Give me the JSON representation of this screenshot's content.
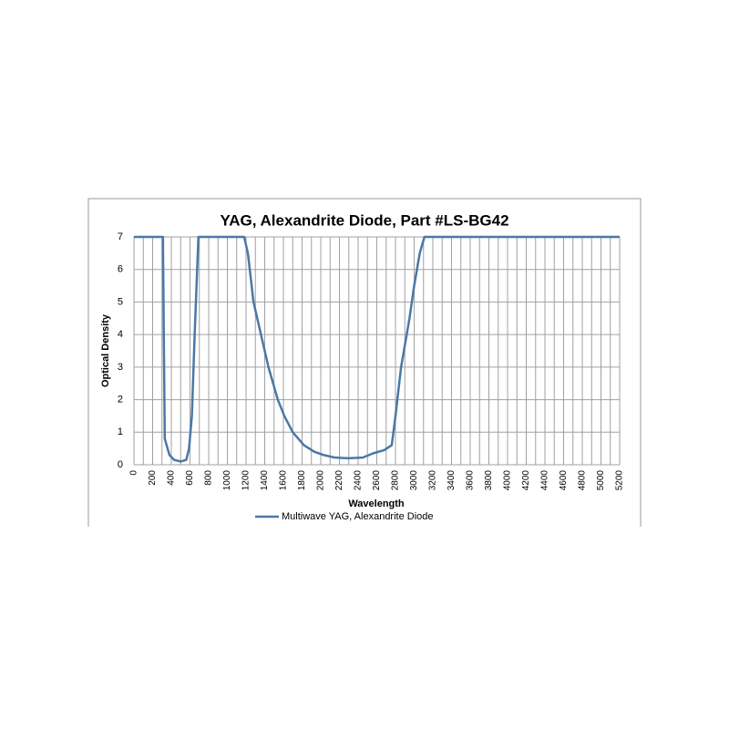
{
  "chart_data": {
    "type": "line",
    "title": "YAG, Alexandrite Diode, Part #LS-BG42",
    "xlabel": "Wavelength",
    "ylabel": "Optical Density",
    "x": [
      0,
      300,
      310,
      330,
      380,
      430,
      500,
      560,
      590,
      620,
      650,
      690,
      1180,
      1220,
      1280,
      1360,
      1440,
      1540,
      1610,
      1700,
      1820,
      1930,
      2030,
      2150,
      2300,
      2450,
      2560,
      2680,
      2760,
      2800,
      2860,
      2950,
      3000,
      3060,
      3110,
      5200
    ],
    "series": [
      {
        "name": "Multiwave YAG, Alexandrite Diode",
        "color": "#4a78a6",
        "values": [
          7,
          7,
          7,
          0.8,
          0.3,
          0.15,
          0.1,
          0.15,
          0.5,
          1.5,
          4,
          7,
          7,
          6.5,
          5,
          4,
          3,
          2,
          1.5,
          1,
          0.6,
          0.4,
          0.3,
          0.22,
          0.2,
          0.22,
          0.35,
          0.45,
          0.6,
          1.5,
          3,
          4.5,
          5.5,
          6.5,
          7,
          7
        ]
      }
    ],
    "xlim": [
      0,
      5200
    ],
    "xticks": [
      0,
      200,
      400,
      600,
      800,
      1000,
      1200,
      1400,
      1600,
      1800,
      2000,
      2200,
      2400,
      2600,
      2800,
      3000,
      3200,
      3400,
      3600,
      3800,
      4000,
      4200,
      4400,
      4600,
      4800,
      5000,
      5200
    ],
    "xgrid": [
      100,
      300,
      500,
      700,
      900,
      1100,
      1300,
      1500,
      1700,
      1900,
      2100,
      2300,
      2500,
      2700,
      2900,
      3100,
      3300,
      3500,
      3700,
      3900,
      4100,
      4300,
      4500,
      4700,
      4900,
      5100
    ],
    "ylim": [
      0,
      7
    ],
    "yticks": [
      0,
      1,
      2,
      3,
      4,
      5,
      6,
      7
    ],
    "grid": true,
    "legend": "bottom"
  }
}
